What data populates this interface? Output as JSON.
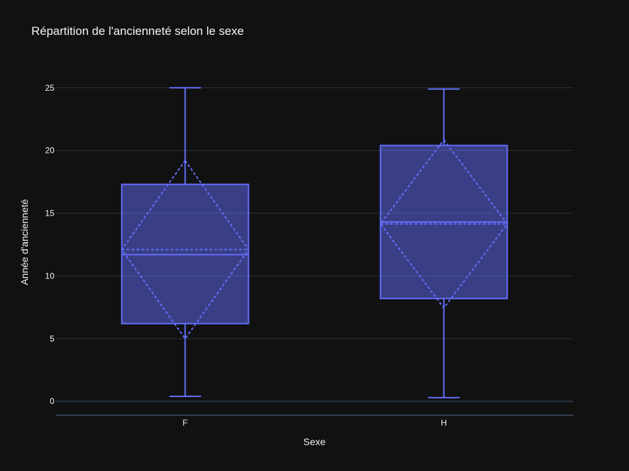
{
  "chart_data": {
    "type": "box",
    "title": "Répartition de l'ancienneté selon le sexe",
    "xlabel": "Sexe",
    "ylabel": "Année d'ancienneté",
    "categories": [
      "F",
      "H"
    ],
    "ylim": [
      -1.1,
      26.6
    ],
    "yticks": [
      0,
      5,
      10,
      15,
      20,
      25
    ],
    "grid": true,
    "boxmean": "sd",
    "color": "#636efa",
    "background": "#111111",
    "gridcolor": "#283442",
    "textcolor": "#f2f5fa",
    "boxes": [
      {
        "name": "F",
        "min": 0.4,
        "q1": 6.2,
        "median": 11.7,
        "q3": 17.3,
        "max": 25.0,
        "mean": 12.1,
        "sd": 7.1
      },
      {
        "name": "H",
        "min": 0.3,
        "q1": 8.2,
        "median": 14.3,
        "q3": 20.4,
        "max": 24.9,
        "mean": 14.15,
        "sd": 6.7
      }
    ]
  }
}
